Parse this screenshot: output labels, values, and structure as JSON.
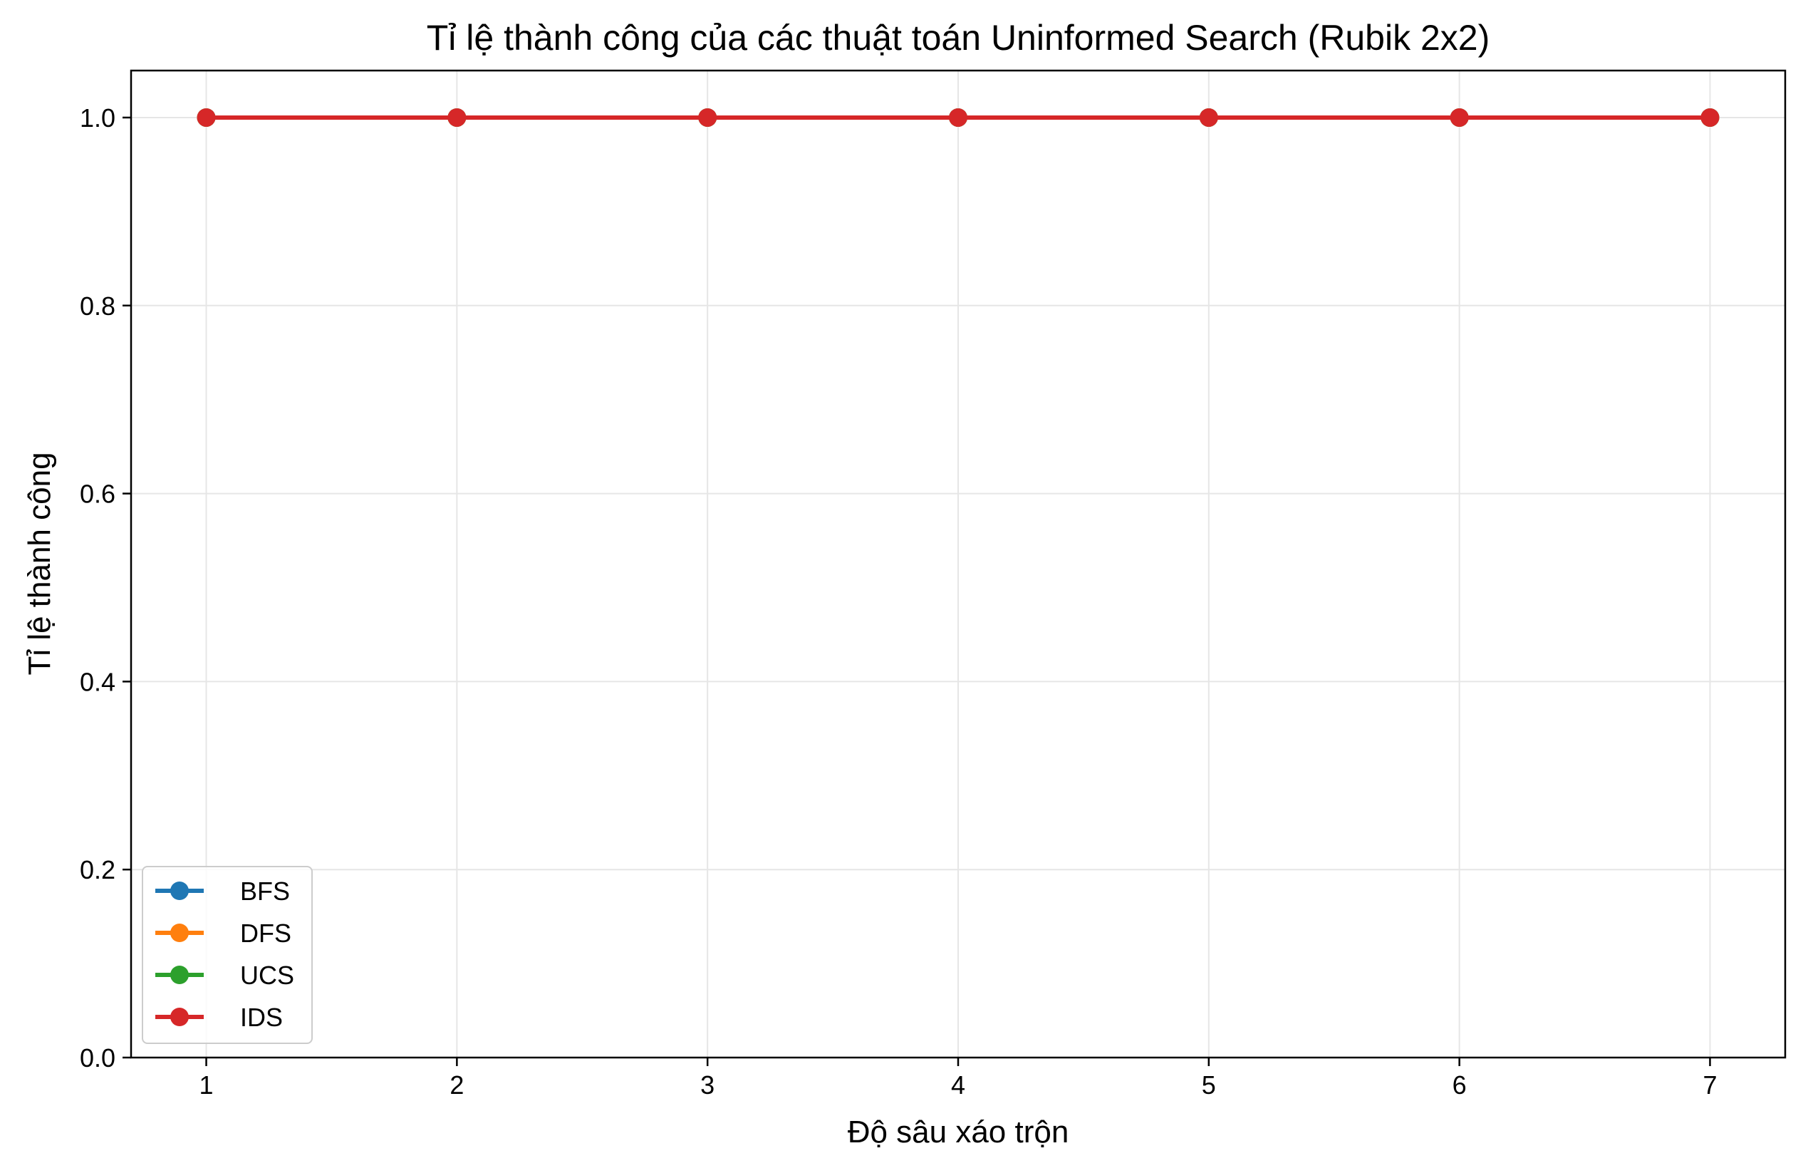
{
  "chart_data": {
    "type": "line",
    "title": "Tỉ lệ thành công của các thuật toán Uninformed Search (Rubik 2x2)",
    "xlabel": "Độ sâu xáo trộn",
    "ylabel": "Tỉ lệ thành công",
    "x": [
      1,
      2,
      3,
      4,
      5,
      6,
      7
    ],
    "xlim": [
      0.7,
      7.3
    ],
    "ylim": [
      0.0,
      1.05
    ],
    "xticks": [
      1,
      2,
      3,
      4,
      5,
      6,
      7
    ],
    "xtick_labels": [
      "1",
      "2",
      "3",
      "4",
      "5",
      "6",
      "7"
    ],
    "yticks": [
      0.0,
      0.2,
      0.4,
      0.6,
      0.8,
      1.0
    ],
    "ytick_labels": [
      "0.0",
      "0.2",
      "0.4",
      "0.6",
      "0.8",
      "1.0"
    ],
    "grid": true,
    "legend_position": "lower-left",
    "series": [
      {
        "name": "BFS",
        "color": "#1f77b4",
        "values": [
          1.0,
          1.0,
          1.0,
          1.0,
          1.0,
          1.0,
          1.0
        ]
      },
      {
        "name": "DFS",
        "color": "#ff7f0e",
        "values": [
          1.0,
          1.0,
          1.0,
          1.0,
          1.0,
          1.0,
          1.0
        ]
      },
      {
        "name": "UCS",
        "color": "#2ca02c",
        "values": [
          1.0,
          1.0,
          1.0,
          1.0,
          1.0,
          1.0,
          1.0
        ]
      },
      {
        "name": "IDS",
        "color": "#d62728",
        "values": [
          1.0,
          1.0,
          1.0,
          1.0,
          1.0,
          1.0,
          1.0
        ]
      }
    ]
  }
}
